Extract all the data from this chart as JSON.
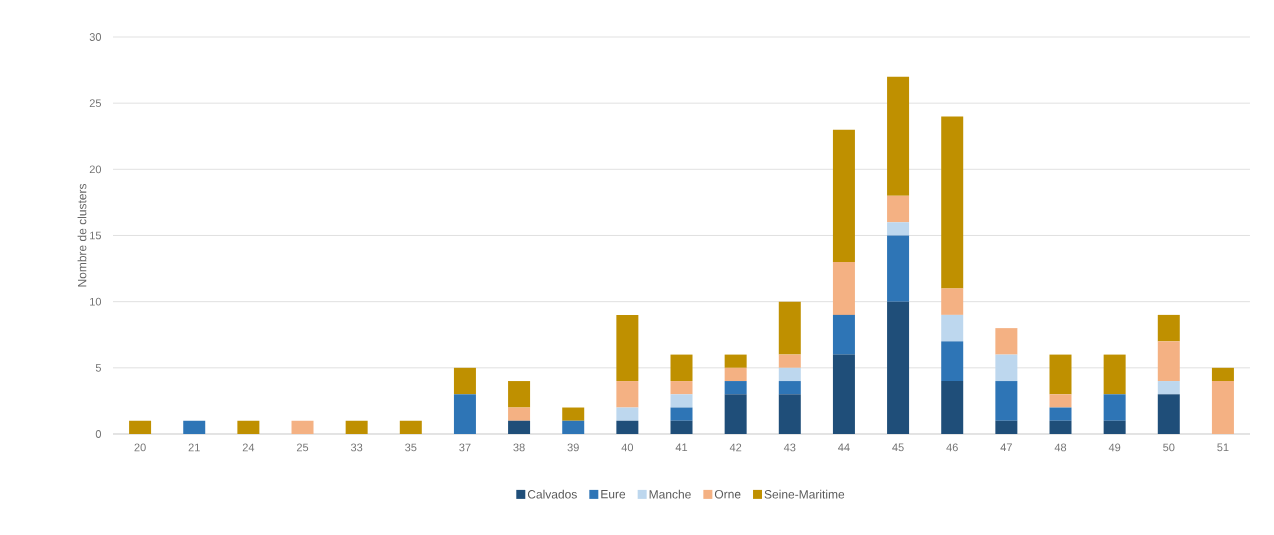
{
  "chart_data": {
    "type": "bar",
    "stacked": true,
    "ylabel": "Nombre de clusters",
    "categories": [
      "20",
      "21",
      "24",
      "25",
      "33",
      "35",
      "37",
      "38",
      "39",
      "40",
      "41",
      "42",
      "43",
      "44",
      "45",
      "46",
      "47",
      "48",
      "49",
      "50",
      "51"
    ],
    "series": [
      {
        "name": "Calvados",
        "color": "#1f4e79",
        "values": [
          0,
          0,
          0,
          0,
          0,
          0,
          0,
          1,
          0,
          1,
          1,
          3,
          3,
          6,
          10,
          4,
          1,
          1,
          1,
          3,
          0
        ]
      },
      {
        "name": "Eure",
        "color": "#2e75b6",
        "values": [
          0,
          1,
          0,
          0,
          0,
          0,
          3,
          0,
          1,
          0,
          1,
          1,
          1,
          3,
          5,
          3,
          3,
          1,
          2,
          0,
          0
        ]
      },
      {
        "name": "Manche",
        "color": "#bdd7ee",
        "values": [
          0,
          0,
          0,
          0,
          0,
          0,
          0,
          0,
          0,
          1,
          1,
          0,
          1,
          0,
          1,
          2,
          2,
          0,
          0,
          1,
          0
        ]
      },
      {
        "name": "Orne",
        "color": "#f4b183",
        "values": [
          0,
          0,
          0,
          1,
          0,
          0,
          0,
          1,
          0,
          2,
          1,
          1,
          1,
          4,
          2,
          2,
          2,
          1,
          0,
          3,
          4
        ]
      },
      {
        "name": "Seine-Maritime",
        "color": "#bf9000",
        "values": [
          1,
          0,
          1,
          0,
          1,
          1,
          2,
          2,
          1,
          5,
          2,
          1,
          4,
          10,
          9,
          13,
          0,
          3,
          3,
          2,
          1
        ]
      }
    ],
    "ylim": [
      0,
      30
    ],
    "yticks": [
      0,
      5,
      10,
      15,
      20,
      25,
      30
    ],
    "grid": "y",
    "legend": "bottom"
  }
}
